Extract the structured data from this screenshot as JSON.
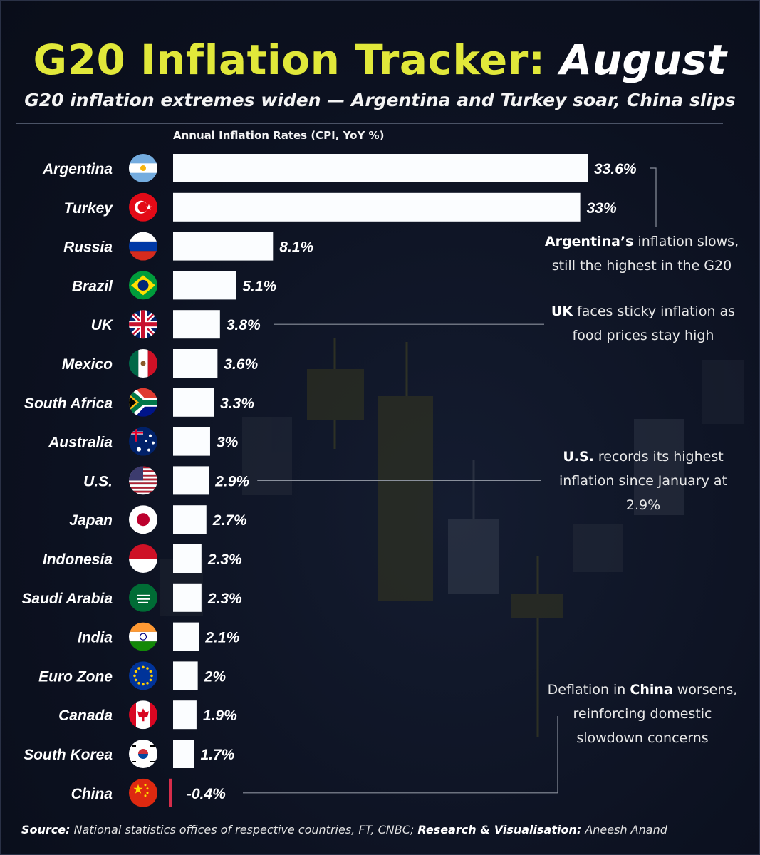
{
  "header": {
    "title_main": "G20 Inflation Tracker:",
    "title_month": "August",
    "subtitle": "G20 inflation extremes widen — Argentina and Turkey soar, China slips"
  },
  "chart_data": {
    "type": "bar",
    "orientation": "horizontal",
    "title": "Annual Inflation Rates (CPI, YoY %)",
    "categories": [
      "Argentina",
      "Turkey",
      "Russia",
      "Brazil",
      "UK",
      "Mexico",
      "South Africa",
      "Australia",
      "U.S.",
      "Japan",
      "Indonesia",
      "Saudi Arabia",
      "India",
      "Euro Zone",
      "Canada",
      "South Korea",
      "China"
    ],
    "values": [
      33.6,
      33,
      8.1,
      5.1,
      3.8,
      3.6,
      3.3,
      3,
      2.9,
      2.7,
      2.3,
      2.3,
      2.1,
      2,
      1.9,
      1.7,
      -0.4
    ],
    "value_labels": [
      "33.6%",
      "33%",
      "8.1%",
      "5.1%",
      "3.8%",
      "3.6%",
      "3.3%",
      "3%",
      "2.9%",
      "2.7%",
      "2.3%",
      "2.3%",
      "2.1%",
      "2%",
      "1.9%",
      "1.7%",
      "-0.4%"
    ],
    "flag_icons": [
      "argentina-flag-icon",
      "turkey-flag-icon",
      "russia-flag-icon",
      "brazil-flag-icon",
      "uk-flag-icon",
      "mexico-flag-icon",
      "south-africa-flag-icon",
      "australia-flag-icon",
      "us-flag-icon",
      "japan-flag-icon",
      "indonesia-flag-icon",
      "saudi-arabia-flag-icon",
      "india-flag-icon",
      "euro-zone-flag-icon",
      "canada-flag-icon",
      "south-korea-flag-icon",
      "china-flag-icon"
    ],
    "xlim": [
      0,
      33.6
    ],
    "grid": false,
    "legend": "none",
    "colors": {
      "positive": "#fbfdff",
      "negative": "#d62d4a",
      "title": "#e1e83a",
      "background": "#0c1120"
    }
  },
  "annotations": {
    "argentina": {
      "bold": "Argentina’s",
      "text1": " inflation slows,",
      "text2": "still the highest in the G20"
    },
    "uk": {
      "bold": "UK",
      "text1": " faces sticky inflation as",
      "text2": "food prices stay high"
    },
    "us": {
      "bold": "U.S.",
      "text1": " records its highest",
      "text2": "inflation since January at",
      "text3": "2.9%"
    },
    "china": {
      "text0": "Deflation in ",
      "bold": "China",
      "text1": " worsens,",
      "text2": "reinforcing domestic",
      "text3": "slowdown concerns"
    }
  },
  "footer": {
    "source_label": "Source:",
    "source_text": " National statistics offices of respective countries, FT, CNBC; ",
    "credit_label": "Research & Visualisation:",
    "credit_text": " Aneesh Anand"
  }
}
